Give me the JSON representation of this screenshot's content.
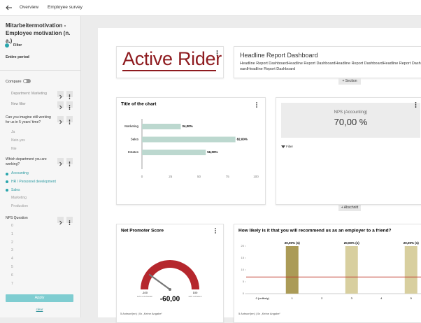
{
  "topbar": {
    "back": "Overview",
    "breadcrumb": "Employee survey"
  },
  "sidebar": {
    "title": "Mitarbeitermotivation - Employee motivation (n. a.)",
    "filter": "Filter",
    "period": "Entire period",
    "compare": "Compare",
    "compare_items": [
      "Department: Marketing",
      "New filter"
    ],
    "questions": [
      {
        "label": "Can you imagine still working for us in 5 years' time?",
        "options": [
          {
            "text": "Ja",
            "selected": false
          },
          {
            "text": "Nein-yes",
            "selected": false
          },
          {
            "text": "Nie",
            "selected": false
          }
        ]
      },
      {
        "label": "Which department you are working?",
        "options": [
          {
            "text": "Accounting",
            "selected": true
          },
          {
            "text": "HR / Personnel development",
            "selected": true
          },
          {
            "text": "Sales",
            "selected": true
          },
          {
            "text": "Marketing",
            "selected": false
          },
          {
            "text": "Production",
            "selected": false
          }
        ]
      },
      {
        "label": "NPS Question",
        "options": [
          {
            "text": "0",
            "selected": false
          },
          {
            "text": "1",
            "selected": false
          },
          {
            "text": "2",
            "selected": false
          },
          {
            "text": "3",
            "selected": false
          },
          {
            "text": "4",
            "selected": false
          },
          {
            "text": "5",
            "selected": false
          },
          {
            "text": "6",
            "selected": false
          },
          {
            "text": "7",
            "selected": false
          }
        ]
      }
    ],
    "apply": "Apply",
    "clear": "clear"
  },
  "logo": {
    "word1": "Active",
    "word2": "Rider"
  },
  "headline": {
    "title": "Headline Report Dashboard",
    "body": "Headline Report DashboardHeadline Report DashboardHeadline Report DashboardHeadline Report DashboardHeadline Report Dashboard"
  },
  "add_section": "+ Section",
  "add_section2": "+ Abschnitt",
  "kpi": {
    "label": "NPS (Accounting)",
    "value": "70,00 %",
    "filter": "Filter"
  },
  "chart_data": [
    {
      "type": "hbar",
      "title": "Title of the chart",
      "categories": [
        "Marketing",
        "Sales",
        "Estates"
      ],
      "values": [
        34,
        82,
        56
      ],
      "value_labels": [
        "34,00%",
        "82,00%",
        "56,00%"
      ],
      "color": "#bcd8cf",
      "xlim": [
        0,
        100
      ],
      "xticks": [
        0,
        25,
        50,
        75,
        100
      ]
    },
    {
      "type": "gauge",
      "title": "Net Promoter Score",
      "value": -60,
      "value_label": "-60,00",
      "ticks": [
        -100,
        100
      ],
      "tick_captions": [
        "sehr unzufrieden",
        "sehr zufrieden"
      ],
      "color": "#b5272d",
      "footer": "5 Antwort(en) | 0x „Keine Angabe“"
    },
    {
      "type": "column",
      "title": "How likely is it that you will recommend us as an employer to a friend?",
      "categories": [
        "0 (unlikely)",
        "1",
        "2",
        "3",
        "4",
        "5"
      ],
      "values": [
        null,
        20,
        null,
        20,
        null,
        20
      ],
      "value_labels": [
        null,
        "20,00% (1)",
        null,
        "20,00% (1)",
        null,
        "20,00% (1)"
      ],
      "colors": [
        null,
        "#ab9b57",
        "#d8cf9f",
        "#d8cf9f",
        "#d8cf9f",
        "#d8cf9f"
      ],
      "ylim": [
        0,
        20
      ],
      "yticks": [
        0,
        5,
        10,
        15,
        20
      ],
      "reference_line": 7,
      "reference_color": "#c0392b",
      "footer": "5 Antwort(en) | 0x „Keine Angabe“"
    }
  ]
}
